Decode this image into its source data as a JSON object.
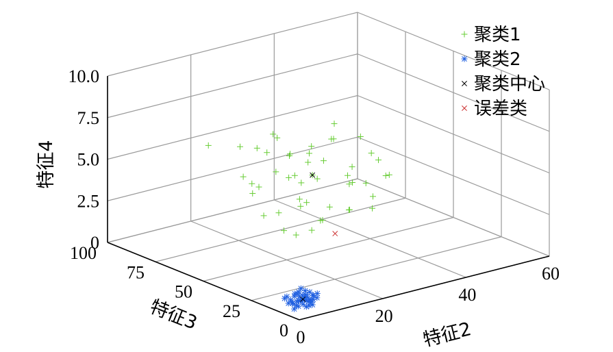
{
  "chart_data": {
    "type": "scatter3d",
    "axes": {
      "x": {
        "label": "特征2",
        "ticks": [
          "0",
          "20",
          "40",
          "60"
        ],
        "range": [
          0,
          60
        ]
      },
      "y": {
        "label": "特征3",
        "ticks": [
          "0",
          "25",
          "50",
          "75",
          "100"
        ],
        "range": [
          0,
          100
        ]
      },
      "z": {
        "label": "特征4",
        "ticks": [
          "0",
          "2.5",
          "5.0",
          "7.5",
          "10.0"
        ],
        "range": [
          0,
          10
        ]
      }
    },
    "grid": true,
    "legend": {
      "position": "top-right",
      "entries": [
        {
          "label": "聚类1",
          "marker": "+",
          "color": "#66cc33"
        },
        {
          "label": "聚类2",
          "marker": "*",
          "color": "#1f5fe0"
        },
        {
          "label": "聚类中心",
          "marker": "x",
          "color": "#000000"
        },
        {
          "label": "误差类",
          "marker": "x",
          "color": "#cc3333"
        }
      ]
    },
    "series": [
      {
        "name": "聚类1",
        "marker": "+",
        "color": "#66cc33",
        "points": [
          [
            20,
            55,
            7.1
          ],
          [
            25,
            48,
            6.6
          ],
          [
            30,
            60,
            5.3
          ],
          [
            18,
            70,
            6.0
          ],
          [
            35,
            50,
            3.6
          ],
          [
            40,
            40,
            4.3
          ],
          [
            22,
            60,
            4.7
          ],
          [
            28,
            45,
            2.9
          ],
          [
            15,
            80,
            5.8
          ],
          [
            33,
            55,
            6.2
          ],
          [
            26,
            62,
            4.0
          ],
          [
            38,
            45,
            5.5
          ],
          [
            24,
            52,
            3.3
          ],
          [
            30,
            40,
            4.9
          ],
          [
            19,
            66,
            3.9
          ],
          [
            42,
            50,
            4.6
          ],
          [
            27,
            58,
            2.4
          ],
          [
            36,
            60,
            6.7
          ],
          [
            21,
            48,
            5.1
          ],
          [
            32,
            65,
            4.4
          ],
          [
            29,
            52,
            1.7
          ],
          [
            23,
            72,
            5.5
          ],
          [
            37,
            42,
            3.1
          ],
          [
            17,
            58,
            4.2
          ],
          [
            34,
            48,
            2.2
          ],
          [
            25,
            68,
            6.4
          ],
          [
            31,
            58,
            3.8
          ],
          [
            40,
            55,
            5.9
          ],
          [
            22,
            44,
            3.6
          ],
          [
            28,
            66,
            5.0
          ],
          [
            35,
            38,
            2.7
          ],
          [
            20,
            62,
            2.1
          ],
          [
            26,
            50,
            1.4
          ],
          [
            33,
            44,
            4.1
          ],
          [
            18,
            56,
            6.3
          ],
          [
            30,
            70,
            4.8
          ],
          [
            24,
            40,
            2.6
          ],
          [
            39,
            50,
            3.4
          ],
          [
            21,
            70,
            3.0
          ],
          [
            27,
            46,
            5.7
          ],
          [
            36,
            52,
            1.9
          ],
          [
            23,
            58,
            1.2
          ],
          [
            32,
            42,
            5.2
          ],
          [
            29,
            62,
            3.5
          ],
          [
            16,
            64,
            4.6
          ],
          [
            41,
            44,
            4.0
          ],
          [
            25,
            56,
            0.9
          ],
          [
            34,
            56,
            6.1
          ],
          [
            19,
            52,
            2.8
          ],
          [
            28,
            54,
            4.4
          ]
        ]
      },
      {
        "name": "聚类2",
        "marker": "*",
        "color": "#1f5fe0",
        "points": [
          [
            3,
            8,
            0.3
          ],
          [
            5,
            6,
            0.5
          ],
          [
            4,
            10,
            0.4
          ],
          [
            6,
            9,
            0.6
          ],
          [
            2,
            7,
            0.2
          ],
          [
            5,
            12,
            0.7
          ],
          [
            7,
            8,
            0.4
          ],
          [
            3,
            11,
            0.5
          ],
          [
            4,
            5,
            0.3
          ],
          [
            6,
            6,
            0.8
          ],
          [
            5,
            9,
            0.2
          ],
          [
            8,
            10,
            0.5
          ],
          [
            2,
            12,
            0.6
          ],
          [
            4,
            7,
            0.9
          ],
          [
            6,
            11,
            0.3
          ],
          [
            3,
            6,
            0.7
          ],
          [
            7,
            12,
            0.5
          ],
          [
            5,
            4,
            0.4
          ],
          [
            4,
            9,
            1.0
          ],
          [
            6,
            8,
            0.1
          ],
          [
            3,
            9,
            0.8
          ],
          [
            5,
            11,
            0.3
          ],
          [
            7,
            6,
            0.6
          ],
          [
            2,
            10,
            0.4
          ],
          [
            8,
            8,
            0.7
          ],
          [
            4,
            12,
            0.2
          ],
          [
            6,
            10,
            0.9
          ],
          [
            5,
            7,
            0.5
          ],
          [
            3,
            13,
            0.6
          ],
          [
            7,
            10,
            0.3
          ],
          [
            4,
            6,
            0.7
          ],
          [
            6,
            13,
            0.4
          ],
          [
            5,
            10,
            1.1
          ],
          [
            2,
            8,
            0.5
          ],
          [
            8,
            12,
            0.6
          ],
          [
            3,
            7,
            0.3
          ],
          [
            6,
            7,
            0.5
          ],
          [
            4,
            11,
            0.8
          ],
          [
            5,
            8,
            0.6
          ],
          [
            7,
            9,
            0.2
          ]
        ]
      },
      {
        "name": "聚类中心",
        "marker": "x",
        "color": "#000000",
        "points": [
          [
            28,
            54,
            4.4
          ],
          [
            5,
            9,
            0.5
          ]
        ]
      },
      {
        "name": "误差类",
        "marker": "x",
        "color": "#cc3333",
        "points": [
          [
            27,
            40,
            1.6
          ]
        ]
      }
    ]
  }
}
